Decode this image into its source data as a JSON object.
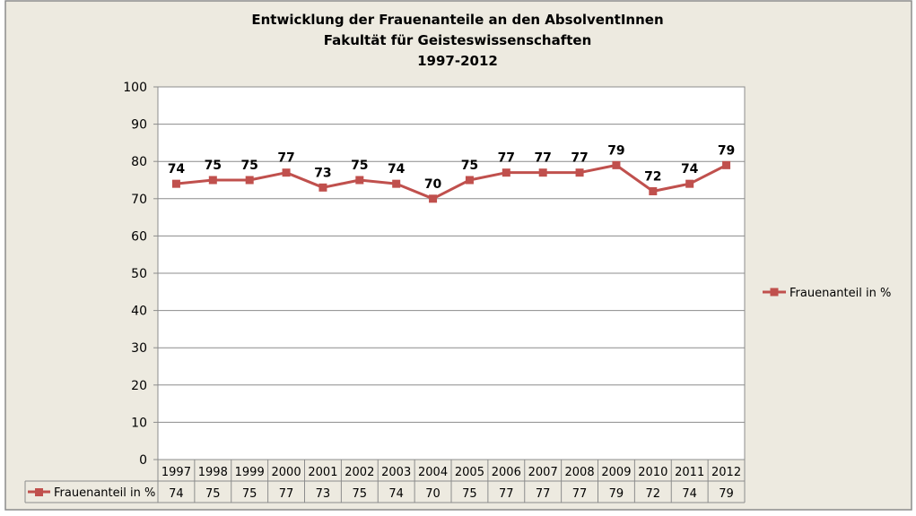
{
  "chart_data": {
    "type": "line",
    "title": [
      "Entwicklung der Frauenanteile an den AbsolventInnen",
      "Fakultät für Geisteswissenschaften",
      "1997-2012"
    ],
    "categories": [
      "1997",
      "1998",
      "1999",
      "2000",
      "2001",
      "2002",
      "2003",
      "2004",
      "2005",
      "2006",
      "2007",
      "2008",
      "2009",
      "2010",
      "2011",
      "2012"
    ],
    "series": [
      {
        "name": "Frauenanteil in %",
        "values": [
          74,
          75,
          75,
          77,
          73,
          75,
          74,
          70,
          75,
          77,
          77,
          77,
          79,
          72,
          74,
          79
        ],
        "color": "#C0504D"
      }
    ],
    "ylim": [
      0,
      100
    ],
    "yticks": [
      0,
      10,
      20,
      30,
      40,
      50,
      60,
      70,
      80,
      90,
      100
    ],
    "grid": true,
    "legend": "right",
    "data_labels": true,
    "data_table": true,
    "background": "#EDEAE0",
    "plot_background": "#FFFFFF"
  }
}
